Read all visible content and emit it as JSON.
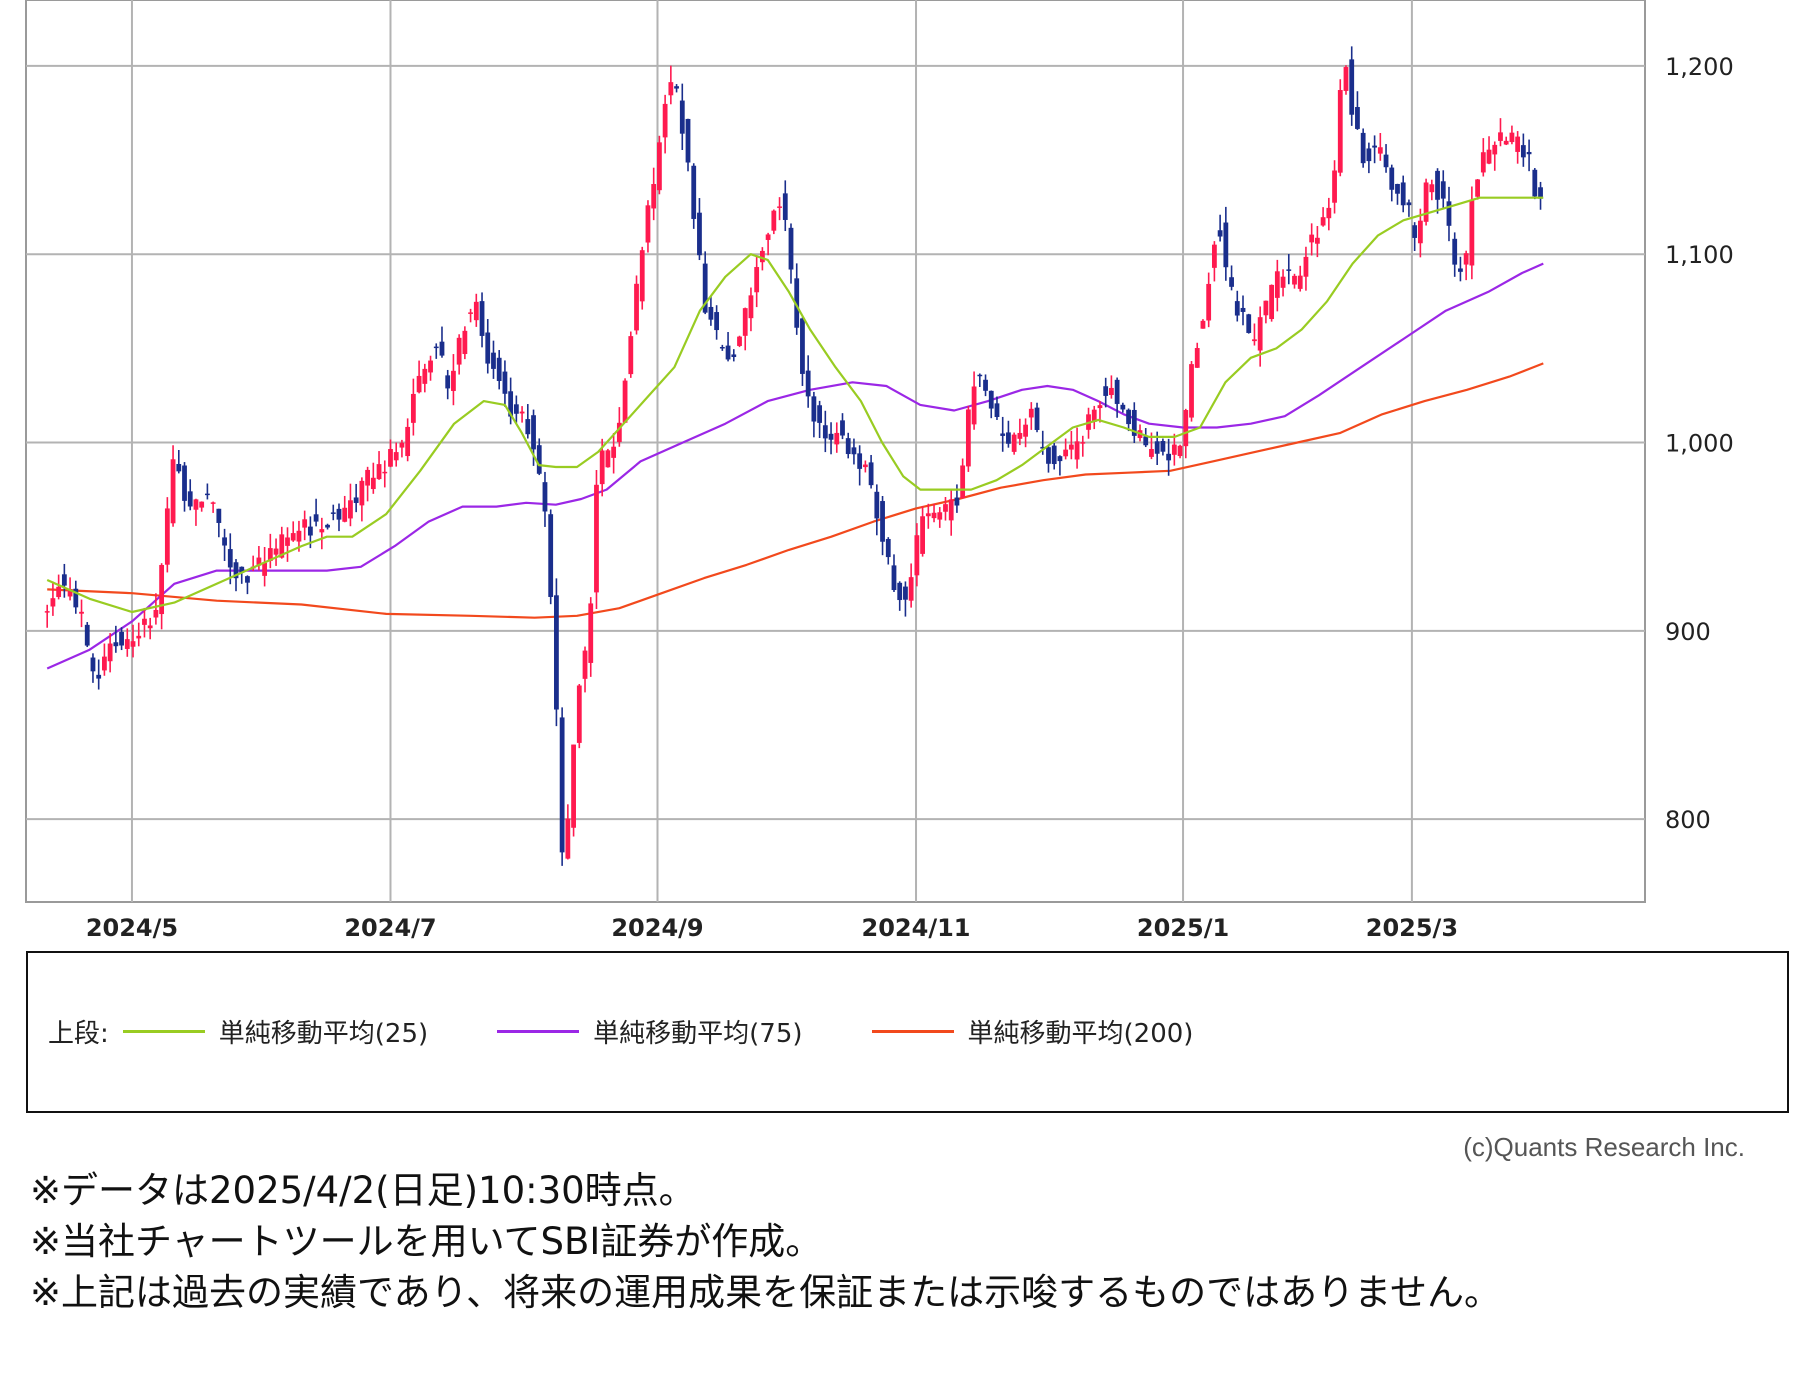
{
  "chart_data": {
    "type": "candlestick",
    "y_ticks": [
      "1,200",
      "1,100",
      "1,000",
      "900",
      "800"
    ],
    "y_tick_values": [
      1200,
      1100,
      1000,
      900,
      800
    ],
    "ylim": [
      756,
      1235
    ],
    "x_ticks": [
      "2024/5",
      "2024/7",
      "2024/9",
      "2024/11",
      "2025/1",
      "2025/3"
    ],
    "x_tick_days": [
      20,
      81,
      144,
      205,
      268,
      322
    ],
    "x_range_days": [
      -5,
      377
    ],
    "grid": true,
    "legend_position": "bottom",
    "colors": {
      "up": "#ff1a4f",
      "down": "#1a2e8c",
      "ma25": "#99cc22",
      "ma75": "#9b27e6",
      "ma200": "#f2491d",
      "grid": "#b3b3b3"
    },
    "close_path": [
      [
        0,
        913
      ],
      [
        2,
        925
      ],
      [
        5,
        921
      ],
      [
        8,
        908
      ],
      [
        10,
        887
      ],
      [
        12,
        878
      ],
      [
        15,
        893
      ],
      [
        18,
        895
      ],
      [
        22,
        902
      ],
      [
        26,
        912
      ],
      [
        30,
        997
      ],
      [
        33,
        960
      ],
      [
        36,
        972
      ],
      [
        39,
        968
      ],
      [
        42,
        943
      ],
      [
        45,
        926
      ],
      [
        48,
        929
      ],
      [
        52,
        940
      ],
      [
        56,
        948
      ],
      [
        60,
        955
      ],
      [
        64,
        955
      ],
      [
        68,
        962
      ],
      [
        72,
        970
      ],
      [
        76,
        982
      ],
      [
        80,
        990
      ],
      [
        84,
        1000
      ],
      [
        88,
        1035
      ],
      [
        92,
        1050
      ],
      [
        95,
        1030
      ],
      [
        98,
        1060
      ],
      [
        101,
        1075
      ],
      [
        104,
        1045
      ],
      [
        107,
        1030
      ],
      [
        110,
        1015
      ],
      [
        113,
        1012
      ],
      [
        116,
        985
      ],
      [
        118,
        950
      ],
      [
        120,
        870
      ],
      [
        121,
        780
      ],
      [
        123,
        800
      ],
      [
        125,
        860
      ],
      [
        128,
        905
      ],
      [
        130,
        990
      ],
      [
        133,
        995
      ],
      [
        136,
        1025
      ],
      [
        139,
        1080
      ],
      [
        142,
        1125
      ],
      [
        144,
        1150
      ],
      [
        146,
        1185
      ],
      [
        148,
        1195
      ],
      [
        150,
        1165
      ],
      [
        152,
        1130
      ],
      [
        155,
        1075
      ],
      [
        158,
        1055
      ],
      [
        161,
        1045
      ],
      [
        164,
        1060
      ],
      [
        167,
        1090
      ],
      [
        170,
        1110
      ],
      [
        172,
        1130
      ],
      [
        174,
        1120
      ],
      [
        176,
        1085
      ],
      [
        178,
        1040
      ],
      [
        181,
        1015
      ],
      [
        184,
        1000
      ],
      [
        187,
        1010
      ],
      [
        190,
        992
      ],
      [
        193,
        985
      ],
      [
        196,
        960
      ],
      [
        199,
        930
      ],
      [
        201,
        918
      ],
      [
        203,
        915
      ],
      [
        206,
        958
      ],
      [
        209,
        960
      ],
      [
        212,
        965
      ],
      [
        215,
        970
      ],
      [
        218,
        1025
      ],
      [
        220,
        1040
      ],
      [
        223,
        1015
      ],
      [
        226,
        1000
      ],
      [
        229,
        1005
      ],
      [
        232,
        1015
      ],
      [
        235,
        995
      ],
      [
        238,
        990
      ],
      [
        241,
        995
      ],
      [
        244,
        1002
      ],
      [
        247,
        1020
      ],
      [
        250,
        1030
      ],
      [
        253,
        1022
      ],
      [
        256,
        1010
      ],
      [
        259,
        998
      ],
      [
        262,
        995
      ],
      [
        265,
        993
      ],
      [
        268,
        1005
      ],
      [
        270,
        1040
      ],
      [
        273,
        1070
      ],
      [
        276,
        1120
      ],
      [
        279,
        1080
      ],
      [
        282,
        1065
      ],
      [
        285,
        1055
      ],
      [
        288,
        1075
      ],
      [
        291,
        1090
      ],
      [
        294,
        1085
      ],
      [
        297,
        1100
      ],
      [
        300,
        1115
      ],
      [
        303,
        1125
      ],
      [
        306,
        1210
      ],
      [
        308,
        1170
      ],
      [
        311,
        1150
      ],
      [
        314,
        1155
      ],
      [
        317,
        1140
      ],
      [
        320,
        1130
      ],
      [
        323,
        1110
      ],
      [
        326,
        1140
      ],
      [
        329,
        1130
      ],
      [
        332,
        1100
      ],
      [
        334,
        1085
      ],
      [
        337,
        1140
      ],
      [
        340,
        1155
      ],
      [
        343,
        1165
      ],
      [
        346,
        1160
      ],
      [
        349,
        1155
      ],
      [
        351,
        1135
      ],
      [
        353,
        1130
      ]
    ],
    "ma25": [
      [
        0,
        927
      ],
      [
        10,
        917
      ],
      [
        20,
        910
      ],
      [
        30,
        915
      ],
      [
        40,
        925
      ],
      [
        50,
        935
      ],
      [
        60,
        945
      ],
      [
        66,
        950
      ],
      [
        72,
        950
      ],
      [
        80,
        962
      ],
      [
        88,
        985
      ],
      [
        96,
        1010
      ],
      [
        103,
        1022
      ],
      [
        108,
        1020
      ],
      [
        112,
        1005
      ],
      [
        116,
        988
      ],
      [
        120,
        987
      ],
      [
        125,
        987
      ],
      [
        130,
        995
      ],
      [
        136,
        1010
      ],
      [
        142,
        1025
      ],
      [
        148,
        1040
      ],
      [
        154,
        1070
      ],
      [
        160,
        1088
      ],
      [
        166,
        1100
      ],
      [
        170,
        1097
      ],
      [
        175,
        1080
      ],
      [
        180,
        1060
      ],
      [
        186,
        1040
      ],
      [
        192,
        1022
      ],
      [
        197,
        1000
      ],
      [
        202,
        982
      ],
      [
        206,
        975
      ],
      [
        212,
        975
      ],
      [
        218,
        975
      ],
      [
        224,
        980
      ],
      [
        230,
        988
      ],
      [
        236,
        998
      ],
      [
        242,
        1008
      ],
      [
        248,
        1012
      ],
      [
        254,
        1008
      ],
      [
        260,
        1003
      ],
      [
        266,
        1003
      ],
      [
        272,
        1008
      ],
      [
        278,
        1032
      ],
      [
        284,
        1045
      ],
      [
        290,
        1050
      ],
      [
        296,
        1060
      ],
      [
        302,
        1075
      ],
      [
        308,
        1095
      ],
      [
        314,
        1110
      ],
      [
        320,
        1118
      ],
      [
        326,
        1122
      ],
      [
        332,
        1126
      ],
      [
        338,
        1130
      ],
      [
        344,
        1130
      ],
      [
        350,
        1130
      ],
      [
        353,
        1130
      ]
    ],
    "ma75": [
      [
        0,
        880
      ],
      [
        10,
        890
      ],
      [
        20,
        905
      ],
      [
        30,
        925
      ],
      [
        40,
        932
      ],
      [
        50,
        932
      ],
      [
        58,
        932
      ],
      [
        66,
        932
      ],
      [
        74,
        934
      ],
      [
        82,
        945
      ],
      [
        90,
        958
      ],
      [
        98,
        966
      ],
      [
        106,
        966
      ],
      [
        113,
        968
      ],
      [
        120,
        967
      ],
      [
        126,
        970
      ],
      [
        132,
        975
      ],
      [
        140,
        990
      ],
      [
        150,
        1000
      ],
      [
        160,
        1010
      ],
      [
        170,
        1022
      ],
      [
        180,
        1028
      ],
      [
        190,
        1032
      ],
      [
        198,
        1030
      ],
      [
        206,
        1020
      ],
      [
        214,
        1017
      ],
      [
        222,
        1022
      ],
      [
        230,
        1028
      ],
      [
        236,
        1030
      ],
      [
        242,
        1028
      ],
      [
        248,
        1022
      ],
      [
        254,
        1015
      ],
      [
        260,
        1010
      ],
      [
        268,
        1008
      ],
      [
        276,
        1008
      ],
      [
        284,
        1010
      ],
      [
        292,
        1014
      ],
      [
        300,
        1025
      ],
      [
        310,
        1040
      ],
      [
        320,
        1055
      ],
      [
        330,
        1070
      ],
      [
        340,
        1080
      ],
      [
        348,
        1090
      ],
      [
        353,
        1095
      ]
    ],
    "ma200": [
      [
        0,
        922
      ],
      [
        20,
        920
      ],
      [
        40,
        916
      ],
      [
        60,
        914
      ],
      [
        80,
        909
      ],
      [
        100,
        908
      ],
      [
        115,
        907
      ],
      [
        125,
        908
      ],
      [
        135,
        912
      ],
      [
        145,
        920
      ],
      [
        155,
        928
      ],
      [
        165,
        935
      ],
      [
        175,
        943
      ],
      [
        185,
        950
      ],
      [
        195,
        958
      ],
      [
        205,
        965
      ],
      [
        215,
        970
      ],
      [
        225,
        976
      ],
      [
        235,
        980
      ],
      [
        245,
        983
      ],
      [
        255,
        984
      ],
      [
        265,
        985
      ],
      [
        275,
        990
      ],
      [
        285,
        995
      ],
      [
        295,
        1000
      ],
      [
        305,
        1005
      ],
      [
        315,
        1015
      ],
      [
        325,
        1022
      ],
      [
        335,
        1028
      ],
      [
        345,
        1035
      ],
      [
        353,
        1042
      ]
    ]
  },
  "legend": {
    "prefix": "上段:",
    "items": [
      {
        "label": "単純移動平均(25)",
        "color": "#99cc22"
      },
      {
        "label": "単純移動平均(75)",
        "color": "#9b27e6"
      },
      {
        "label": "単純移動平均(200)",
        "color": "#f2491d"
      }
    ]
  },
  "copyright": "(c)Quants Research Inc.",
  "notes": [
    "※データは2025/4/2(日足)10:30時点。",
    "※当社チャートツールを用いてSBI証券が作成。",
    "※上記は過去の実績であり、将来の運用成果を保証または示唆するものではありません。"
  ]
}
